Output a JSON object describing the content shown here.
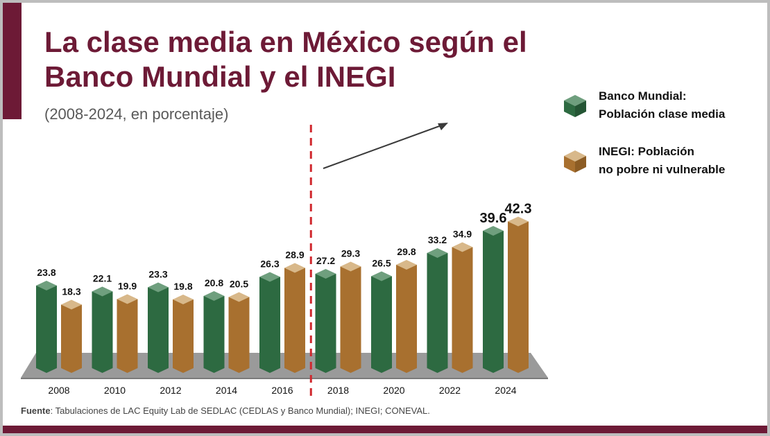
{
  "header": {
    "title": "La clase media en México según el Banco Mundial y el INEGI",
    "subtitle": "(2008-2024, en porcentaje)"
  },
  "legend": [
    {
      "label": "Banco Mundial:\nPoblación clase media",
      "color": "#2d6a41"
    },
    {
      "label": "INEGI: Población\nno pobre ni vulnerable",
      "color": "#a8702f"
    }
  ],
  "source": {
    "label": "Fuente",
    "text": ": Tabulaciones de LAC Equity Lab de SEDLAC (CEDLAS y Banco Mundial); INEGI; CONEVAL."
  },
  "colors": {
    "green": "#2d6a41",
    "green_top": "#6f9f7e",
    "orange": "#a8702f",
    "orange_top": "#d8b88a",
    "accent": "#6d1a36",
    "divider": "#d0282e"
  },
  "chart_data": {
    "type": "bar",
    "title": "La clase media en México según el Banco Mundial y el INEGI",
    "categories": [
      "2008",
      "2010",
      "2012",
      "2014",
      "2016",
      "2018",
      "2020",
      "2022",
      "2024"
    ],
    "series": [
      {
        "name": "Banco Mundial: Población clase media",
        "values": [
          23.8,
          22.1,
          23.3,
          20.8,
          26.3,
          27.2,
          26.5,
          33.2,
          39.6
        ]
      },
      {
        "name": "INEGI: Población no pobre ni vulnerable",
        "values": [
          18.3,
          19.9,
          19.8,
          20.5,
          28.9,
          29.3,
          29.8,
          34.9,
          42.3
        ]
      }
    ],
    "ylim": [
      0,
      45
    ],
    "divider_after_category": "2016",
    "highlight_category": "2024"
  }
}
